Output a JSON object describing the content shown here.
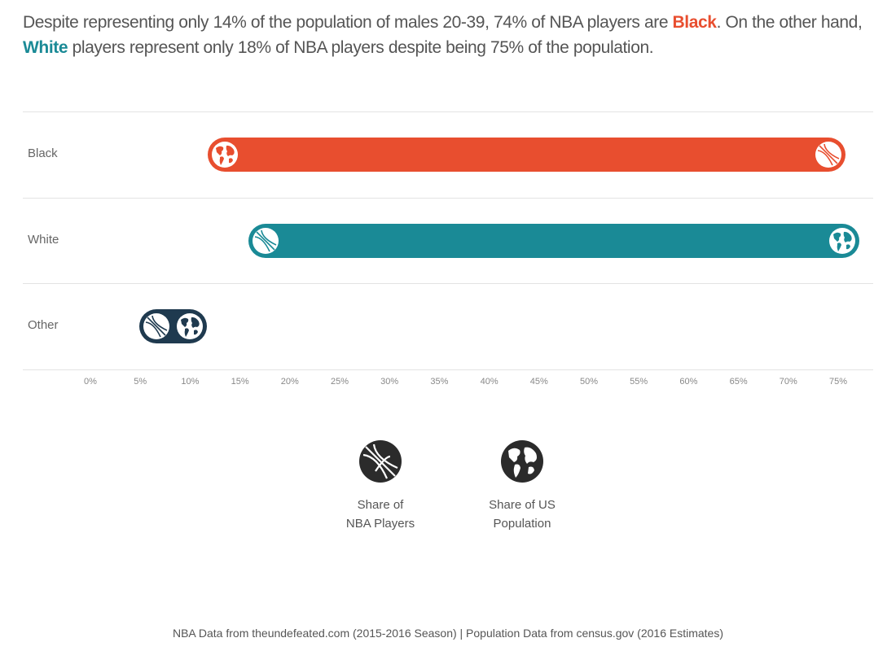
{
  "headline": {
    "part1": "Despite representing only 14% of the population of males 20-39, 74% of NBA players are ",
    "black_word": "Black",
    "part2": ". On the other hand, ",
    "white_word": "White",
    "part3": " players represent only 18% of NBA players despite being 75% of the population."
  },
  "colors": {
    "black": "#e84e2f",
    "white": "#1a8a96",
    "other": "#1f3a4f",
    "marker_light": "#ffffff"
  },
  "chart_data": {
    "type": "dumbbell",
    "x_ticks": [
      "0%",
      "5%",
      "10%",
      "15%",
      "20%",
      "25%",
      "30%",
      "35%",
      "40%",
      "45%",
      "50%",
      "55%",
      "60%",
      "65%",
      "70%",
      "75%"
    ],
    "xlim": [
      0,
      75
    ],
    "grid": "horizontal row separators",
    "categories": [
      "Black",
      "White",
      "Other"
    ],
    "series": [
      {
        "name": "Share of NBA Players",
        "icon": "basketball-icon",
        "values": [
          74,
          17.6,
          6.6
        ]
      },
      {
        "name": "Share of US Population",
        "icon": "globe-icon",
        "values": [
          13.5,
          75.4,
          10
        ]
      }
    ]
  },
  "legend": {
    "nba": {
      "line1": "Share of",
      "line2": "NBA Players",
      "icon": "basketball-icon"
    },
    "pop": {
      "line1": "Share of US",
      "line2": "Population",
      "icon": "globe-icon"
    }
  },
  "footer": "NBA Data from theundefeated.com (2015-2016 Season)  |  Population Data from census.gov (2016 Estimates)"
}
